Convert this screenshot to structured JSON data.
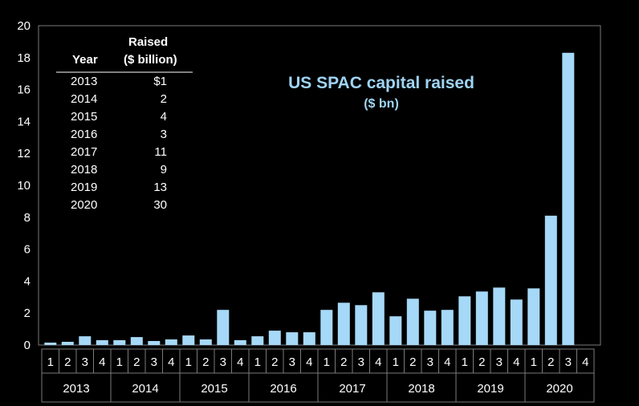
{
  "chart_data": {
    "type": "bar",
    "title": "US SPAC capital raised",
    "subtitle": "($ bn)",
    "xlabel": "",
    "ylabel": "",
    "ylim": [
      0,
      20
    ],
    "yticks": [
      "0",
      "2",
      "4",
      "6",
      "8",
      "10",
      "12",
      "14",
      "16",
      "18",
      "20"
    ],
    "grid": false,
    "bar_color": "#a6d8f7",
    "years": [
      "2013",
      "2014",
      "2015",
      "2016",
      "2017",
      "2018",
      "2019",
      "2020"
    ],
    "quarters": [
      "1",
      "2",
      "3",
      "4"
    ],
    "categories": [
      "2013 Q1",
      "2013 Q2",
      "2013 Q3",
      "2013 Q4",
      "2014 Q1",
      "2014 Q2",
      "2014 Q3",
      "2014 Q4",
      "2015 Q1",
      "2015 Q2",
      "2015 Q3",
      "2015 Q4",
      "2016 Q1",
      "2016 Q2",
      "2016 Q3",
      "2016 Q4",
      "2017 Q1",
      "2017 Q2",
      "2017 Q3",
      "2017 Q4",
      "2018 Q1",
      "2018 Q2",
      "2018 Q3",
      "2018 Q4",
      "2019 Q1",
      "2019 Q2",
      "2019 Q3",
      "2019 Q4",
      "2020 Q1",
      "2020 Q2",
      "2020 Q3",
      "2020 Q4"
    ],
    "values": [
      0.15,
      0.2,
      0.55,
      0.3,
      0.3,
      0.5,
      0.25,
      0.35,
      0.6,
      0.35,
      2.2,
      0.3,
      0.55,
      0.9,
      0.8,
      0.8,
      2.2,
      2.65,
      2.5,
      3.3,
      1.8,
      2.9,
      2.15,
      2.2,
      3.05,
      3.35,
      3.6,
      2.85,
      3.55,
      8.1,
      18.3,
      0
    ],
    "inset_table": {
      "header_year": "Year",
      "header_raised_1": "Raised",
      "header_raised_2": "($ billion)",
      "rows": [
        {
          "year": "2013",
          "raised": "$1"
        },
        {
          "year": "2014",
          "raised": "2"
        },
        {
          "year": "2015",
          "raised": "4"
        },
        {
          "year": "2016",
          "raised": "3"
        },
        {
          "year": "2017",
          "raised": "11"
        },
        {
          "year": "2018",
          "raised": "9"
        },
        {
          "year": "2019",
          "raised": "13"
        },
        {
          "year": "2020",
          "raised": "30"
        }
      ]
    }
  }
}
